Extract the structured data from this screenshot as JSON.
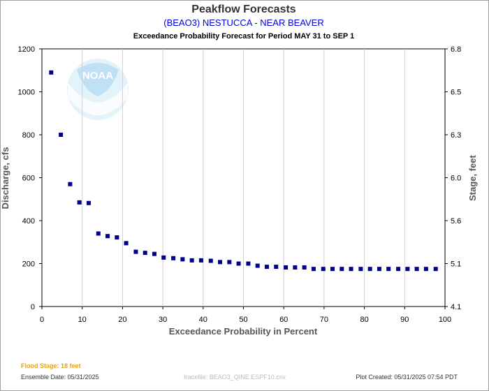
{
  "header": {
    "title": "Peakflow Forecasts",
    "station": "(BEAO3) NESTUCCA - NEAR BEAVER",
    "period": "Exceedance Probability Forecast for Period MAY 31 to SEP 1"
  },
  "footer": {
    "flood_stage": "Flood Stage: 18 feet",
    "ensemble_date": "Ensemble Date: 05/31/2025",
    "tracefile": "tracefile: BEAO3_QINE.ESPF10.csv",
    "plot_created": "Plot Created: 05/31/2025 07:54 PDT"
  },
  "logo": {
    "text": "NOAA",
    "color": "#7fc2ea"
  },
  "chart_data": {
    "type": "scatter",
    "xlabel": "Exceedance Probability in Percent",
    "ylabel": "Discharge, cfs",
    "y2label": "Stage, feet",
    "xlim": [
      0,
      100
    ],
    "ylim": [
      0,
      1200
    ],
    "xticks": [
      "0",
      "10",
      "20",
      "30",
      "40",
      "50",
      "60",
      "70",
      "80",
      "90",
      "100"
    ],
    "yticks": [
      "0",
      "200",
      "400",
      "600",
      "800",
      "1000",
      "1200"
    ],
    "y2ticks": [
      "4.1",
      "5.1",
      "5.6",
      "6.0",
      "6.3",
      "6.5",
      "6.8"
    ],
    "grid": true,
    "marker_color": "#00008b",
    "series": [
      {
        "x": [
          2.3,
          4.7,
          7.0,
          9.3,
          11.6,
          14.0,
          16.3,
          18.6,
          20.9,
          23.3,
          25.6,
          27.9,
          30.2,
          32.6,
          34.9,
          37.2,
          39.5,
          41.9,
          44.2,
          46.5,
          48.8,
          51.2,
          53.5,
          55.8,
          58.1,
          60.5,
          62.8,
          65.1,
          67.4,
          69.8,
          72.1,
          74.4,
          76.7,
          79.1,
          81.4,
          83.7,
          86.0,
          88.4,
          90.7,
          93.0,
          95.3,
          97.7
        ],
        "y": [
          1090,
          800,
          570,
          485,
          482,
          340,
          328,
          322,
          295,
          255,
          250,
          245,
          228,
          225,
          220,
          215,
          215,
          213,
          207,
          207,
          200,
          200,
          190,
          185,
          185,
          182,
          182,
          182,
          175,
          175,
          175,
          175,
          175,
          175,
          175,
          175,
          175,
          175,
          175,
          175,
          175,
          175
        ]
      }
    ]
  }
}
